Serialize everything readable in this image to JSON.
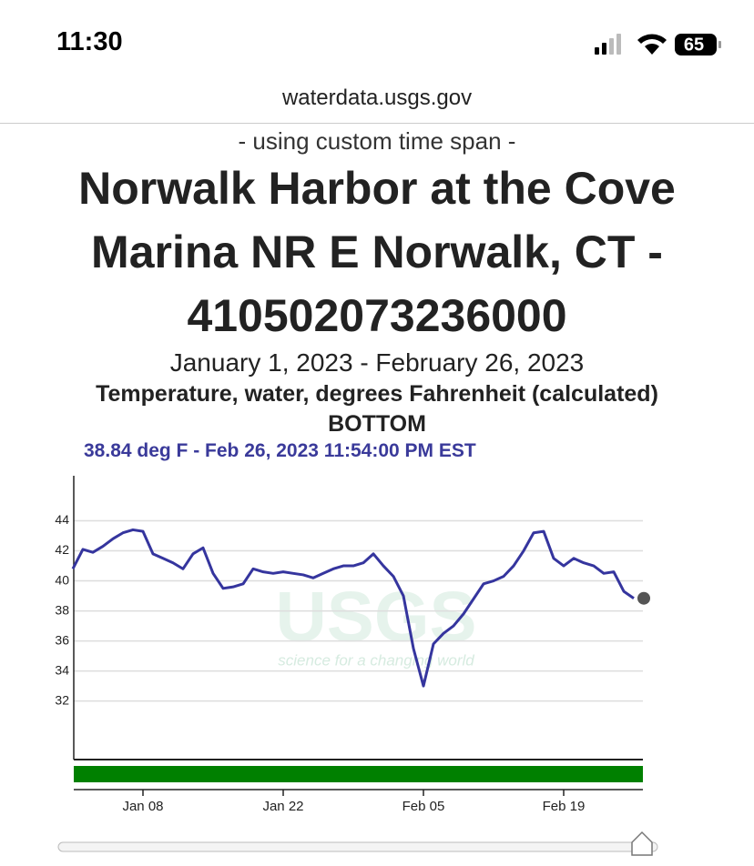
{
  "status_bar": {
    "time": "11:30",
    "battery": "65"
  },
  "browser": {
    "url": "waterdata.usgs.gov"
  },
  "page": {
    "time_span_note": "- using custom time span -",
    "title": "Norwalk Harbor at the Cove Marina NR E Norwalk, CT - 410502073236000",
    "date_range": "January 1, 2023 - February 26, 2023",
    "parameter": "Temperature, water, degrees Fahrenheit (calculated)",
    "location": "BOTTOM",
    "tooltip": "38.84 deg F - Feb 26, 2023 11:54:00 PM EST",
    "watermark": {
      "logo": "USGS",
      "tagline": "science for a changing world"
    }
  },
  "chart_data": {
    "type": "line",
    "x": [
      "Jan 01",
      "Jan 02",
      "Jan 03",
      "Jan 04",
      "Jan 05",
      "Jan 06",
      "Jan 07",
      "Jan 08",
      "Jan 09",
      "Jan 10",
      "Jan 11",
      "Jan 12",
      "Jan 13",
      "Jan 14",
      "Jan 15",
      "Jan 16",
      "Jan 17",
      "Jan 18",
      "Jan 19",
      "Jan 20",
      "Jan 21",
      "Jan 22",
      "Jan 23",
      "Jan 24",
      "Jan 25",
      "Jan 26",
      "Jan 27",
      "Jan 28",
      "Jan 29",
      "Jan 30",
      "Jan 31",
      "Feb 01",
      "Feb 02",
      "Feb 03",
      "Feb 04",
      "Feb 05",
      "Feb 06",
      "Feb 07",
      "Feb 08",
      "Feb 09",
      "Feb 10",
      "Feb 11",
      "Feb 12",
      "Feb 13",
      "Feb 14",
      "Feb 15",
      "Feb 16",
      "Feb 17",
      "Feb 18",
      "Feb 19",
      "Feb 20",
      "Feb 21",
      "Feb 22",
      "Feb 23",
      "Feb 24",
      "Feb 25",
      "Feb 26"
    ],
    "values": [
      40.8,
      42.1,
      41.9,
      42.3,
      42.8,
      43.2,
      43.4,
      43.3,
      41.8,
      41.5,
      41.2,
      40.8,
      41.8,
      42.2,
      40.5,
      39.5,
      39.6,
      39.8,
      40.8,
      40.6,
      40.5,
      40.6,
      40.5,
      40.4,
      40.2,
      40.5,
      40.8,
      41.0,
      41.0,
      41.2,
      41.8,
      41.0,
      40.3,
      39.0,
      35.5,
      33.0,
      35.8,
      36.5,
      37.0,
      37.8,
      38.8,
      39.8,
      40.0,
      40.3,
      41.0,
      42.0,
      43.2,
      43.3,
      41.5,
      41.0,
      41.5,
      41.2,
      41.0,
      40.5,
      40.6,
      39.3,
      38.84
    ],
    "color": "#35359e",
    "ylim": [
      28.1,
      47.0
    ],
    "yticks": [
      32,
      34,
      36,
      38,
      40,
      42,
      44
    ],
    "xticks": [
      "Jan 08",
      "Jan 22",
      "Feb 05",
      "Feb 19"
    ],
    "grid": true,
    "approval_bar_color": "#008000"
  }
}
